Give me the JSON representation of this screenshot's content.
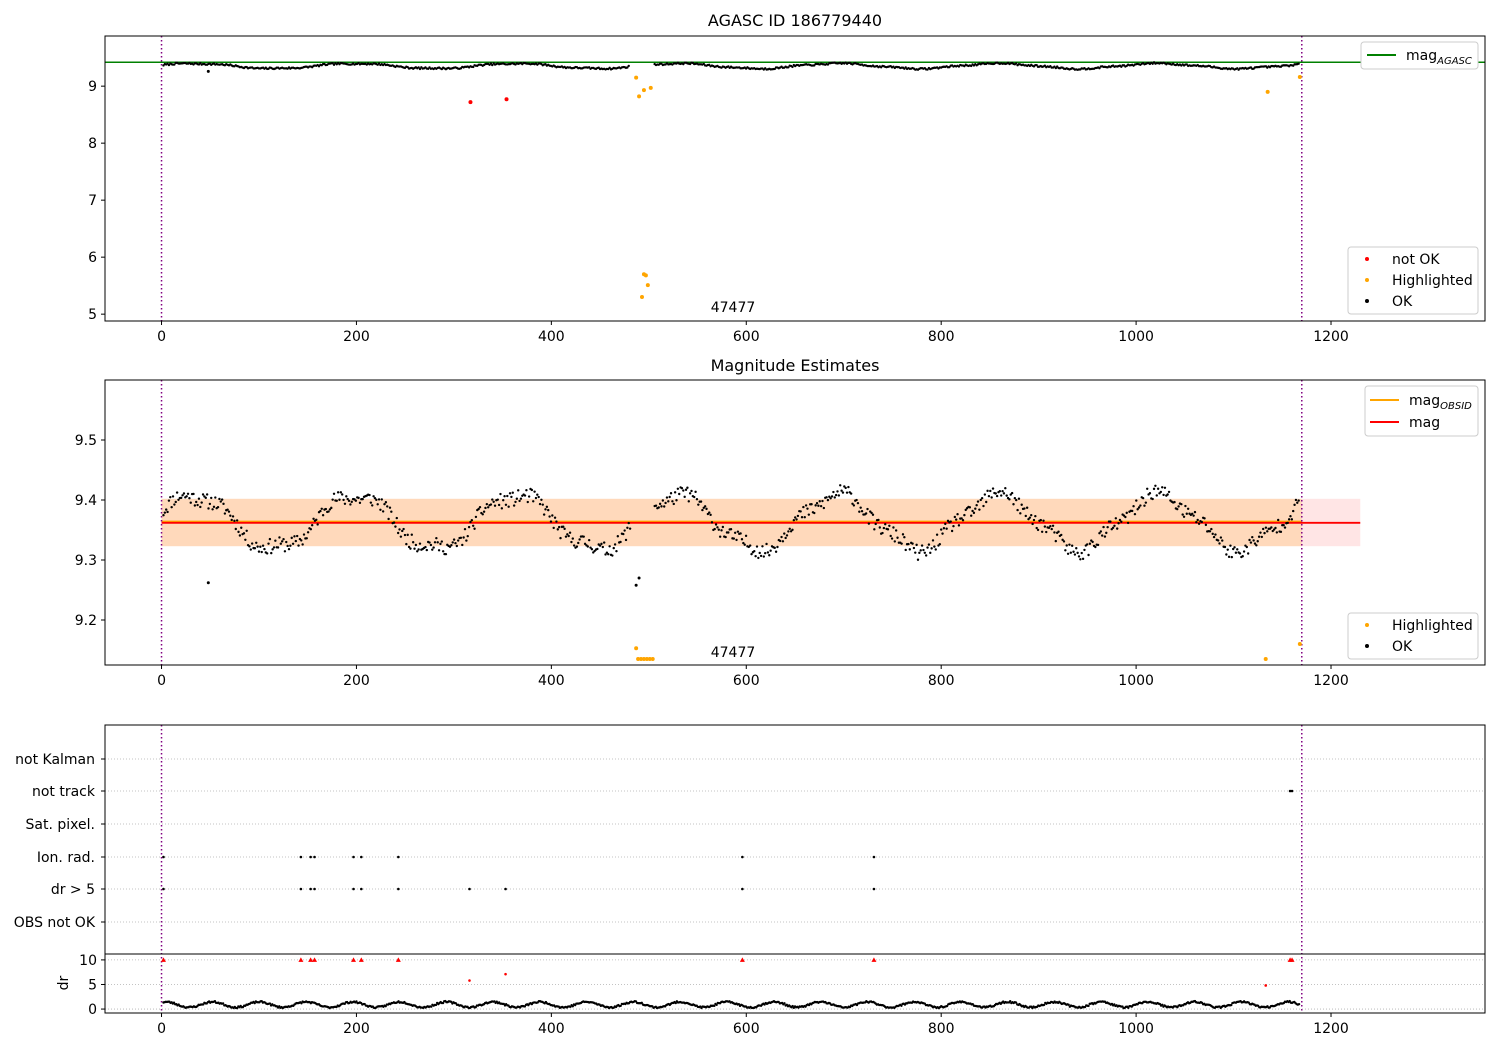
{
  "charts": [
    {
      "id": "agasc",
      "type": "scatter",
      "title": "AGASC ID 186779440",
      "xlim": [
        -58,
        1358
      ],
      "ylim": [
        4.88,
        9.88
      ],
      "xticks": [
        "0",
        "200",
        "400",
        "600",
        "800",
        "1000",
        "1200"
      ],
      "yticks": [
        "5",
        "6",
        "7",
        "8",
        "9"
      ],
      "annotation": "47477",
      "vlines": [
        0,
        1170
      ],
      "hline": {
        "value": 9.42,
        "color": "#008000"
      },
      "legend_lines": [
        {
          "label": "mag",
          "sub": "AGASC",
          "color": "#008000"
        }
      ],
      "legend_points": [
        {
          "label": "not OK",
          "color": "#ff0000"
        },
        {
          "label": "Highlighted",
          "color": "#ffa500"
        },
        {
          "label": "OK",
          "color": "#000000"
        }
      ],
      "not_ok_points": [
        [
          317,
          8.72
        ],
        [
          354,
          8.77
        ]
      ],
      "highlighted_points": [
        [
          487,
          9.15
        ],
        [
          490,
          8.82
        ],
        [
          495,
          8.93
        ],
        [
          502,
          8.97
        ],
        [
          493,
          5.3
        ],
        [
          495,
          5.7
        ],
        [
          497,
          5.68
        ],
        [
          499,
          5.51
        ],
        [
          1135,
          8.9
        ],
        [
          1168,
          9.16
        ]
      ],
      "ok_outliers": [
        [
          48,
          9.26
        ]
      ]
    },
    {
      "id": "estimates",
      "type": "scatter",
      "title": "Magnitude Estimates",
      "xlim": [
        -58,
        1358
      ],
      "ylim": [
        9.125,
        9.6
      ],
      "xticks": [
        "0",
        "200",
        "400",
        "600",
        "800",
        "1000",
        "1200"
      ],
      "yticks": [
        "9.2",
        "9.3",
        "9.4",
        "9.5"
      ],
      "annotation": "47477",
      "vlines": [
        0,
        1170
      ],
      "mag_line": {
        "value": 9.362,
        "color": "#ff0000"
      },
      "obsid_line": {
        "value": 9.364,
        "color": "#ffa500"
      },
      "band": [
        9.323,
        9.402
      ],
      "legend_lines": [
        {
          "label": "mag",
          "sub": "OBSID",
          "color": "#ffa500"
        },
        {
          "label": "mag",
          "sub": "",
          "color": "#ff0000"
        }
      ],
      "legend_points": [
        {
          "label": "Highlighted",
          "color": "#ffa500"
        },
        {
          "label": "OK",
          "color": "#000000"
        }
      ],
      "highlighted_points": [
        [
          487,
          9.153
        ],
        [
          489,
          9.135
        ],
        [
          492,
          9.135
        ],
        [
          495,
          9.135
        ],
        [
          498,
          9.135
        ],
        [
          501,
          9.135
        ],
        [
          504,
          9.135
        ],
        [
          1133,
          9.135
        ],
        [
          1168,
          9.16
        ]
      ],
      "ok_outliers": [
        [
          48,
          9.262
        ],
        [
          487,
          9.258
        ],
        [
          490,
          9.27
        ]
      ]
    },
    {
      "id": "flags",
      "type": "scatter",
      "xlim": [
        -58,
        1358
      ],
      "categories": [
        "not Kalman",
        "not track",
        "Sat. pixel.",
        "Ion. rad.",
        "dr > 5",
        "OBS not OK"
      ],
      "flag_points": {
        "not track": [
          1158,
          1160
        ],
        "Ion. rad.": [
          2,
          143,
          153,
          157,
          197,
          205,
          243,
          596,
          731
        ],
        "dr > 5": [
          2,
          143,
          153,
          157,
          197,
          205,
          243,
          316,
          353,
          596,
          731
        ]
      }
    },
    {
      "id": "dr",
      "type": "scatter",
      "ylabel": "dr",
      "xlim": [
        -58,
        1358
      ],
      "ylim": [
        -0.8,
        11.2
      ],
      "xticks": [
        "0",
        "200",
        "400",
        "600",
        "800",
        "1000",
        "1200"
      ],
      "yticks": [
        "0",
        "5",
        "10"
      ],
      "red_points": [
        [
          2,
          10
        ],
        [
          143,
          10
        ],
        [
          153,
          10
        ],
        [
          157,
          10
        ],
        [
          197,
          10
        ],
        [
          205,
          10
        ],
        [
          243,
          10
        ],
        [
          596,
          10
        ],
        [
          731,
          10
        ],
        [
          1158,
          10
        ],
        [
          1160,
          10
        ],
        [
          316,
          5.8
        ],
        [
          353,
          7.1
        ],
        [
          1133,
          4.8
        ]
      ]
    }
  ]
}
